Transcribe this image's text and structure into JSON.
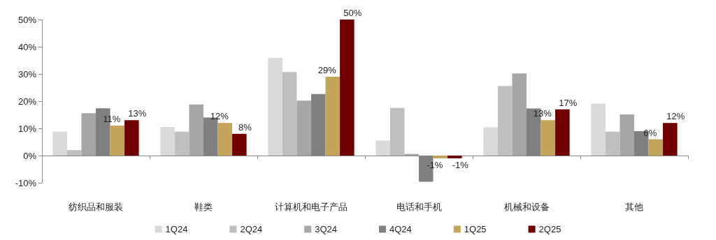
{
  "chart_data": {
    "type": "bar",
    "categories": [
      "纺织品和服装",
      "鞋类",
      "计算机和电子产品",
      "电话和手机",
      "机械和设备",
      "其他"
    ],
    "series": [
      {
        "name": "1Q24",
        "color": "#d9d9d9",
        "values": [
          8.8,
          10.5,
          35.9,
          5.5,
          10.4,
          19.1
        ]
      },
      {
        "name": "2Q24",
        "color": "#bfbfbf",
        "values": [
          2.0,
          8.8,
          30.7,
          17.5,
          25.6,
          8.8
        ]
      },
      {
        "name": "3Q24",
        "color": "#a6a6a6",
        "values": [
          15.6,
          18.8,
          20.2,
          0.6,
          30.2,
          15.1
        ]
      },
      {
        "name": "4Q24",
        "color": "#808080",
        "values": [
          17.4,
          14.0,
          22.6,
          -9.6,
          17.3,
          9.0
        ]
      },
      {
        "name": "1Q25",
        "color": "#c4a35a",
        "values": [
          11,
          12,
          29,
          -1,
          13,
          6
        ],
        "value_labels": [
          "11%",
          "12%",
          "29%",
          "-1%",
          "13%",
          "6%"
        ]
      },
      {
        "name": "2Q25",
        "color": "#700000",
        "values": [
          13,
          8,
          50,
          -1,
          17,
          12
        ],
        "value_labels": [
          "13%",
          "8%",
          "50%",
          "-1%",
          "17%",
          "12%"
        ]
      }
    ],
    "ylim": [
      -10,
      50
    ],
    "yticks": [
      {
        "value": -10,
        "label": "-10%"
      },
      {
        "value": 0,
        "label": "0%"
      },
      {
        "value": 10,
        "label": "10%"
      },
      {
        "value": 20,
        "label": "20%"
      },
      {
        "value": 30,
        "label": "30%"
      },
      {
        "value": 40,
        "label": "40%"
      },
      {
        "value": 50,
        "label": "50%"
      }
    ],
    "legend": "bottom"
  }
}
